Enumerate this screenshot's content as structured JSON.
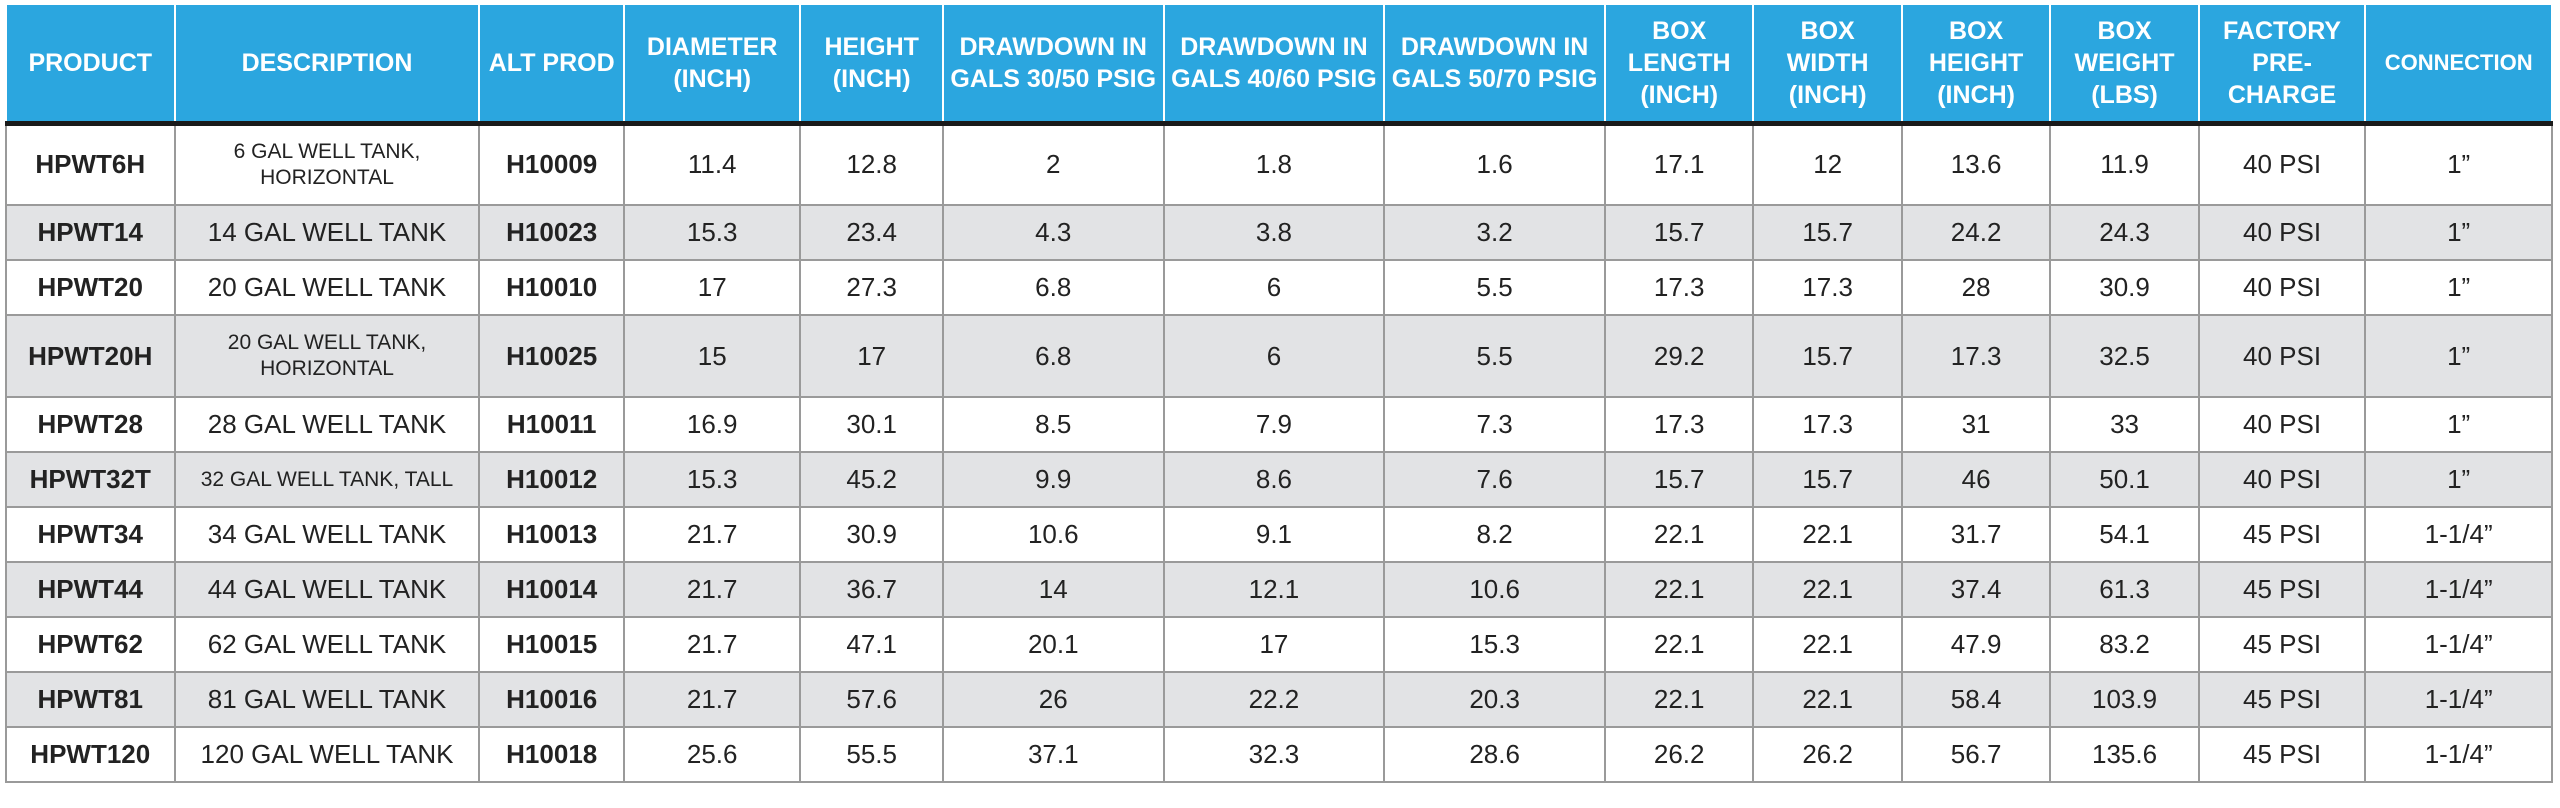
{
  "table": {
    "headers": [
      "PRODUCT",
      "DESCRIPTION",
      "ALT PROD",
      "DIAMETER (INCH)",
      "HEIGHT (INCH)",
      "DRAWDOWN IN GALS 30/50 PSIG",
      "DRAWDOWN IN GALS 40/60 PSIG",
      "DRAWDOWN IN GALS 50/70 PSIG",
      "BOX LENGTH (INCH)",
      "BOX WIDTH (INCH)",
      "BOX HEIGHT (INCH)",
      "BOX WEIGHT (LBS)",
      "FACTORY PRE-CHARGE",
      "CONNECTION"
    ],
    "rows": [
      [
        "HPWT6H",
        "6 GAL WELL TANK, HORIZONTAL",
        "H10009",
        "11.4",
        "12.8",
        "2",
        "1.8",
        "1.6",
        "17.1",
        "12",
        "13.6",
        "11.9",
        "40 PSI",
        "1”"
      ],
      [
        "HPWT14",
        "14 GAL WELL TANK",
        "H10023",
        "15.3",
        "23.4",
        "4.3",
        "3.8",
        "3.2",
        "15.7",
        "15.7",
        "24.2",
        "24.3",
        "40 PSI",
        "1”"
      ],
      [
        "HPWT20",
        "20 GAL WELL TANK",
        "H10010",
        "17",
        "27.3",
        "6.8",
        "6",
        "5.5",
        "17.3",
        "17.3",
        "28",
        "30.9",
        "40 PSI",
        "1”"
      ],
      [
        "HPWT20H",
        "20 GAL WELL TANK, HORIZONTAL",
        "H10025",
        "15",
        "17",
        "6.8",
        "6",
        "5.5",
        "29.2",
        "15.7",
        "17.3",
        "32.5",
        "40 PSI",
        "1”"
      ],
      [
        "HPWT28",
        "28 GAL WELL TANK",
        "H10011",
        "16.9",
        "30.1",
        "8.5",
        "7.9",
        "7.3",
        "17.3",
        "17.3",
        "31",
        "33",
        "40 PSI",
        "1”"
      ],
      [
        "HPWT32T",
        "32 GAL WELL TANK, TALL",
        "H10012",
        "15.3",
        "45.2",
        "9.9",
        "8.6",
        "7.6",
        "15.7",
        "15.7",
        "46",
        "50.1",
        "40 PSI",
        "1”"
      ],
      [
        "HPWT34",
        "34 GAL WELL TANK",
        "H10013",
        "21.7",
        "30.9",
        "10.6",
        "9.1",
        "8.2",
        "22.1",
        "22.1",
        "31.7",
        "54.1",
        "45 PSI",
        "1-1/4”"
      ],
      [
        "HPWT44",
        "44 GAL WELL TANK",
        "H10014",
        "21.7",
        "36.7",
        "14",
        "12.1",
        "10.6",
        "22.1",
        "22.1",
        "37.4",
        "61.3",
        "45 PSI",
        "1-1/4”"
      ],
      [
        "HPWT62",
        "62 GAL WELL TANK",
        "H10015",
        "21.7",
        "47.1",
        "20.1",
        "17",
        "15.3",
        "22.1",
        "22.1",
        "47.9",
        "83.2",
        "45 PSI",
        "1-1/4”"
      ],
      [
        "HPWT81",
        "81 GAL WELL TANK",
        "H10016",
        "21.7",
        "57.6",
        "26",
        "22.2",
        "20.3",
        "22.1",
        "22.1",
        "58.4",
        "103.9",
        "45 PSI",
        "1-1/4”"
      ],
      [
        "HPWT120",
        "120 GAL WELL TANK",
        "H10018",
        "25.6",
        "55.5",
        "37.1",
        "32.3",
        "28.6",
        "26.2",
        "26.2",
        "56.7",
        "135.6",
        "45 PSI",
        "1-1/4”"
      ]
    ]
  }
}
